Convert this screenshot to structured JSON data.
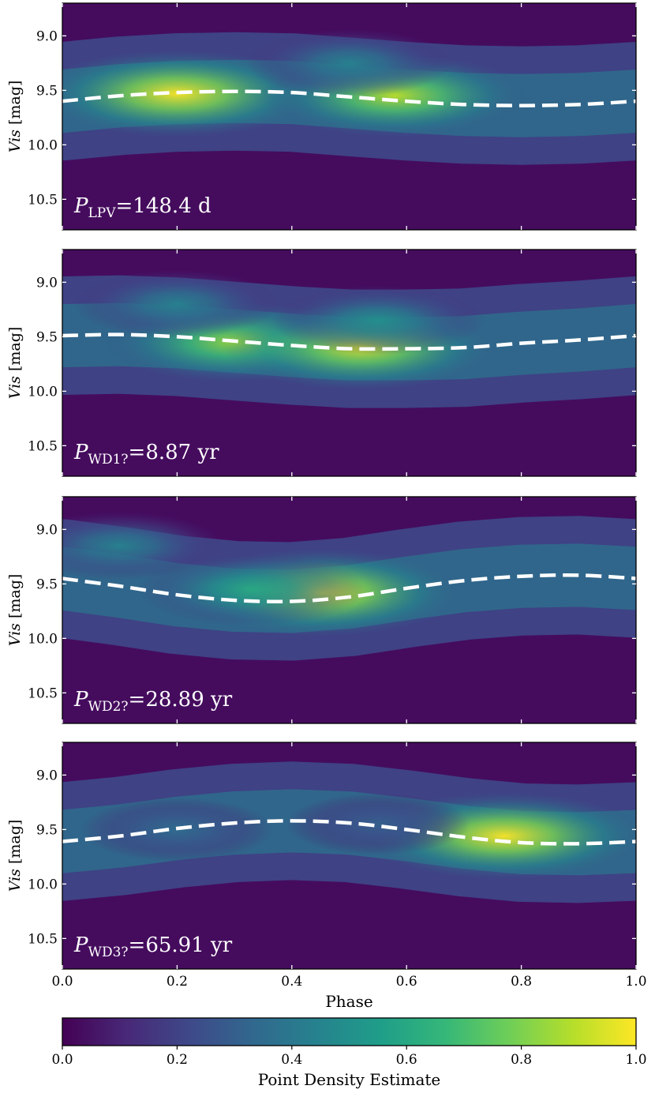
{
  "chart_data": [
    {
      "type": "heatmap",
      "subtype": "phase-folded light curve density with model fit",
      "annotation": {
        "base": "P",
        "sub": "LPV",
        "value": "=148.4 d"
      },
      "ylabel": "Vis [mag]",
      "xlim": [
        0.0,
        1.0
      ],
      "ylim": [
        9.0,
        10.5
      ],
      "y_inverted": true,
      "y_view_range": [
        8.7,
        10.78
      ],
      "y_ticks": [
        "9.0",
        "9.5",
        "10.0",
        "10.5"
      ],
      "x_ticks": [
        "0.0",
        "0.2",
        "0.4",
        "0.6",
        "0.8",
        "1.0"
      ],
      "show_xticklabels": false,
      "fit_curve": {
        "style": "white dashed",
        "x": [
          0.0,
          0.1,
          0.2,
          0.3,
          0.4,
          0.5,
          0.6,
          0.7,
          0.8,
          0.9,
          1.0
        ],
        "y": [
          9.6,
          9.55,
          9.52,
          9.51,
          9.52,
          9.56,
          9.6,
          9.63,
          9.64,
          9.63,
          9.6
        ]
      },
      "density_peaks": [
        {
          "x": 0.2,
          "y": 9.53,
          "density": 1.0
        },
        {
          "x": 0.58,
          "y": 9.55,
          "density": 0.9
        },
        {
          "x": 0.5,
          "y": 9.25,
          "density": 0.45
        }
      ]
    },
    {
      "type": "heatmap",
      "subtype": "phase-folded light curve density with model fit",
      "annotation": {
        "base": "P",
        "sub": "WD1?",
        "value": "=8.87 yr"
      },
      "ylabel": "Vis [mag]",
      "xlim": [
        0.0,
        1.0
      ],
      "ylim": [
        9.0,
        10.5
      ],
      "y_inverted": true,
      "y_view_range": [
        8.7,
        10.78
      ],
      "y_ticks": [
        "9.0",
        "9.5",
        "10.0",
        "10.5"
      ],
      "x_ticks": [
        "0.0",
        "0.2",
        "0.4",
        "0.6",
        "0.8",
        "1.0"
      ],
      "show_xticklabels": false,
      "fit_curve": {
        "style": "white dashed",
        "x": [
          0.0,
          0.1,
          0.2,
          0.3,
          0.4,
          0.5,
          0.6,
          0.7,
          0.8,
          0.9,
          1.0
        ],
        "y": [
          9.49,
          9.48,
          9.5,
          9.54,
          9.58,
          9.61,
          9.61,
          9.6,
          9.56,
          9.53,
          9.49
        ]
      },
      "density_peaks": [
        {
          "x": 0.3,
          "y": 9.55,
          "density": 0.85
        },
        {
          "x": 0.52,
          "y": 9.6,
          "density": 0.95
        },
        {
          "x": 0.2,
          "y": 9.2,
          "density": 0.45
        },
        {
          "x": 0.55,
          "y": 9.35,
          "density": 0.5
        }
      ]
    },
    {
      "type": "heatmap",
      "subtype": "phase-folded light curve density with model fit",
      "annotation": {
        "base": "P",
        "sub": "WD2?",
        "value": "=28.89 yr"
      },
      "ylabel": "Vis [mag]",
      "xlim": [
        0.0,
        1.0
      ],
      "ylim": [
        9.0,
        10.5
      ],
      "y_inverted": true,
      "y_view_range": [
        8.7,
        10.78
      ],
      "y_ticks": [
        "9.0",
        "9.5",
        "10.0",
        "10.5"
      ],
      "x_ticks": [
        "0.0",
        "0.2",
        "0.4",
        "0.6",
        "0.8",
        "1.0"
      ],
      "show_xticklabels": false,
      "fit_curve": {
        "style": "white dashed",
        "x": [
          0.0,
          0.1,
          0.2,
          0.3,
          0.4,
          0.5,
          0.6,
          0.7,
          0.8,
          0.9,
          1.0
        ],
        "y": [
          9.45,
          9.52,
          9.6,
          9.65,
          9.66,
          9.62,
          9.54,
          9.47,
          9.43,
          9.42,
          9.45
        ]
      },
      "density_peaks": [
        {
          "x": 0.45,
          "y": 9.58,
          "density": 1.0
        },
        {
          "x": 0.1,
          "y": 9.15,
          "density": 0.45
        },
        {
          "x": 0.33,
          "y": 9.55,
          "density": 0.6
        }
      ]
    },
    {
      "type": "heatmap",
      "subtype": "phase-folded light curve density with model fit",
      "annotation": {
        "base": "P",
        "sub": "WD3?",
        "value": "=65.91 yr"
      },
      "ylabel": "Vis [mag]",
      "xlabel": "Phase",
      "xlim": [
        0.0,
        1.0
      ],
      "ylim": [
        9.0,
        10.5
      ],
      "y_inverted": true,
      "y_view_range": [
        8.7,
        10.78
      ],
      "y_ticks": [
        "9.0",
        "9.5",
        "10.0",
        "10.5"
      ],
      "x_ticks": [
        "0.0",
        "0.2",
        "0.4",
        "0.6",
        "0.8",
        "1.0"
      ],
      "show_xticklabels": true,
      "fit_curve": {
        "style": "white dashed",
        "x": [
          0.0,
          0.1,
          0.2,
          0.3,
          0.4,
          0.5,
          0.6,
          0.7,
          0.8,
          0.9,
          1.0
        ],
        "y": [
          9.61,
          9.56,
          9.49,
          9.44,
          9.42,
          9.44,
          9.5,
          9.57,
          9.62,
          9.63,
          9.61
        ]
      },
      "density_peaks": [
        {
          "x": 0.77,
          "y": 9.56,
          "density": 1.0
        },
        {
          "x": 0.2,
          "y": 9.5,
          "density": 0.35
        },
        {
          "x": 0.55,
          "y": 9.45,
          "density": 0.3
        }
      ]
    }
  ],
  "colorbar": {
    "label": "Point Density Estimate",
    "colormap": "viridis",
    "range": [
      0.0,
      1.0
    ],
    "ticks": [
      "0.0",
      "0.2",
      "0.4",
      "0.6",
      "0.8",
      "1.0"
    ]
  }
}
